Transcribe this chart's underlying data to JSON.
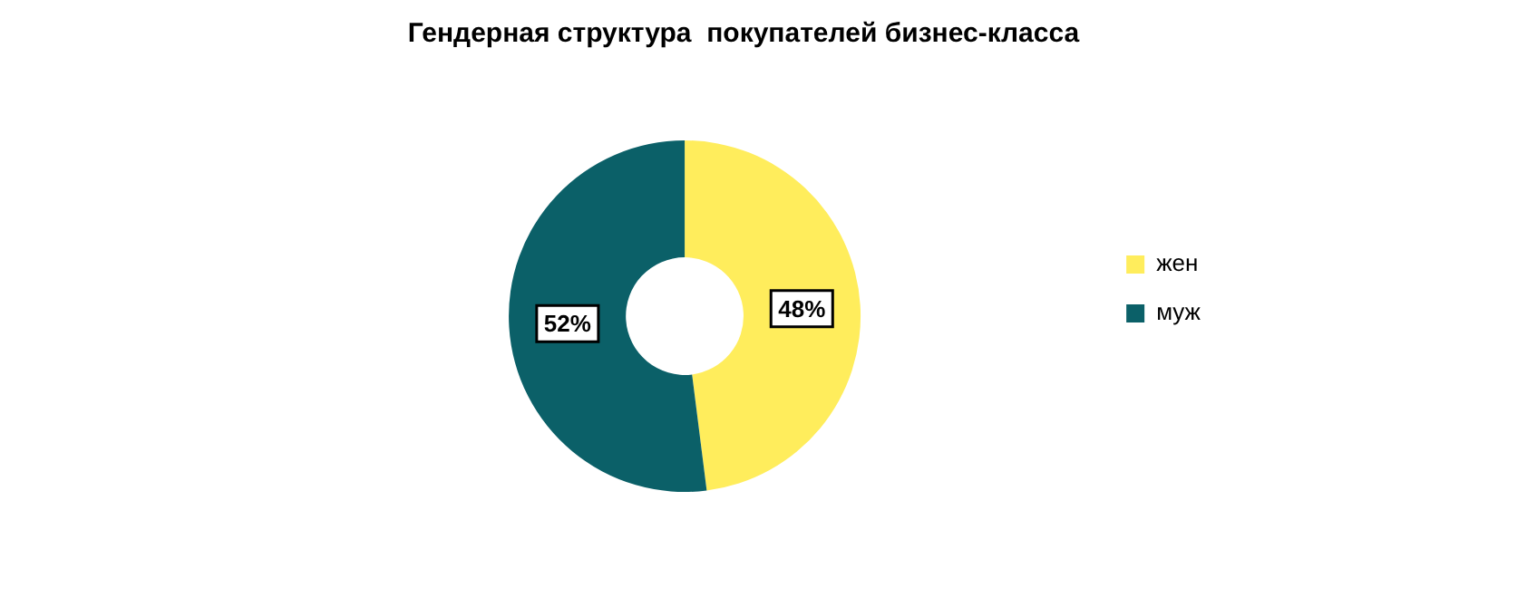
{
  "chart_data": {
    "type": "donut",
    "title": "Гендерная структура  покупателей бизнес-класса",
    "categories": [
      "жен",
      "муж"
    ],
    "values": [
      48,
      52
    ],
    "colors": [
      "#ffed5c",
      "#0b6068"
    ],
    "value_labels": [
      "48%",
      "52%"
    ],
    "legend": "right"
  }
}
